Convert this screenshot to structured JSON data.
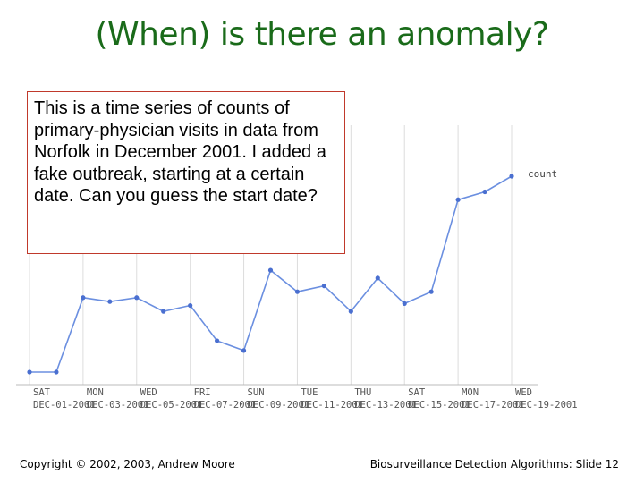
{
  "slide": {
    "title": "(When) is there an anomaly?",
    "callout_text": "This is a time series of counts of primary-physician visits in data from Norfolk in December 2001. I added a fake outbreak, starting at a certain date. Can you guess the start date?",
    "footer_left": "Copyright © 2002, 2003, Andrew Moore",
    "footer_right": "Biosurveillance Detection Algorithms: Slide 12"
  },
  "chart_data": {
    "type": "line",
    "title": "",
    "xlabel": "",
    "ylabel": "",
    "x": [
      "2001-12-01",
      "2001-12-02",
      "2001-12-03",
      "2001-12-04",
      "2001-12-05",
      "2001-12-06",
      "2001-12-07",
      "2001-12-08",
      "2001-12-09",
      "2001-12-10",
      "2001-12-11",
      "2001-12-12",
      "2001-12-13",
      "2001-12-14",
      "2001-12-15",
      "2001-12-16",
      "2001-12-17",
      "2001-12-18",
      "2001-12-19"
    ],
    "series": [
      {
        "name": "count",
        "values": [
          0.0,
          0.0,
          0.38,
          0.36,
          0.38,
          0.31,
          0.34,
          0.16,
          0.11,
          0.52,
          0.41,
          0.44,
          0.31,
          0.48,
          0.35,
          0.41,
          0.88,
          0.92,
          1.0
        ]
      }
    ],
    "tick_labels": [
      {
        "day": "SAT",
        "date": "DEC-01-2001"
      },
      {
        "day": "MON",
        "date": "DEC-03-2001"
      },
      {
        "day": "WED",
        "date": "DEC-05-2001"
      },
      {
        "day": "FRI",
        "date": "DEC-07-2001"
      },
      {
        "day": "SUN",
        "date": "DEC-09-2001"
      },
      {
        "day": "TUE",
        "date": "DEC-11-2001"
      },
      {
        "day": "THU",
        "date": "DEC-13-2001"
      },
      {
        "day": "SAT",
        "date": "DEC-15-2001"
      },
      {
        "day": "MON",
        "date": "DEC-17-2001"
      },
      {
        "day": "WED",
        "date": "DEC-19-2001"
      }
    ],
    "ylim": [
      0,
      1
    ],
    "grid": "vertical",
    "colors": {
      "line": "#6b8fe0",
      "marker": "#4a6fd0",
      "grid": "#dcdcdc",
      "axis": "#999999"
    }
  }
}
